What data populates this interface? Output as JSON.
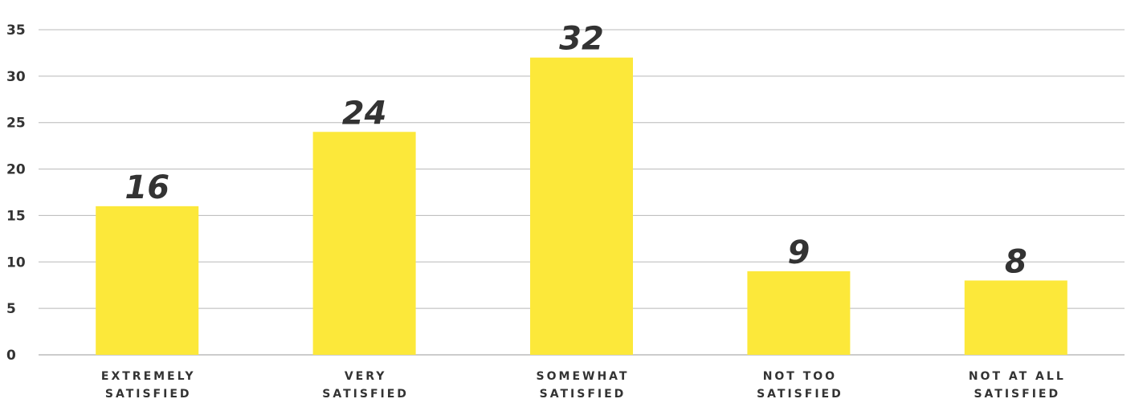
{
  "chart_data": {
    "type": "bar",
    "categories": [
      [
        "EXTREMELY",
        "SATISFIED"
      ],
      [
        "VERY",
        "SATISFIED"
      ],
      [
        "SOMEWHAT",
        "SATISFIED"
      ],
      [
        "NOT TOO",
        "SATISFIED"
      ],
      [
        "NOT AT ALL",
        "SATISFIED"
      ]
    ],
    "values": [
      16,
      24,
      32,
      9,
      8
    ],
    "data_labels": [
      "16",
      "24",
      "32",
      "9",
      "8"
    ],
    "yticks": [
      "0",
      "5",
      "10",
      "15",
      "20",
      "25",
      "30",
      "35"
    ],
    "ylim": [
      0,
      35
    ],
    "grid": true,
    "bar_color": "#FCE83A",
    "text_color": "#333333",
    "grid_color": "#B8B8B8"
  }
}
